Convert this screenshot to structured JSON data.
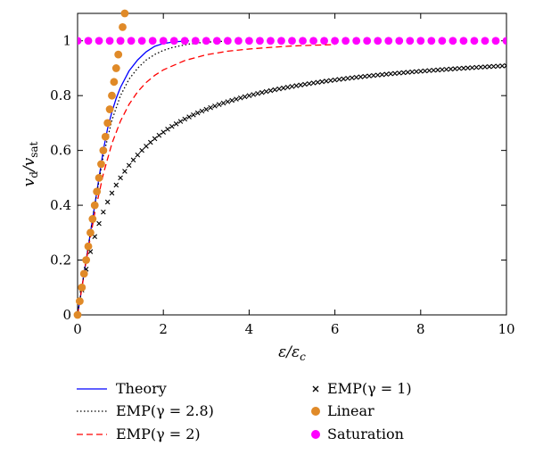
{
  "chart_data": {
    "type": "line",
    "xlabel": "ε/ε_c",
    "ylabel": "v_d/v_sat",
    "xlim": [
      0,
      10
    ],
    "ylim": [
      0,
      1.1
    ],
    "xticks": [
      0,
      2,
      4,
      6,
      8,
      10
    ],
    "yticks": [
      0,
      0.2,
      0.4,
      0.6,
      0.8,
      1
    ],
    "grid": false,
    "legend_position": "below",
    "series": [
      {
        "name": "Theory",
        "style": "solid",
        "color": "#0000ff",
        "x": [
          0,
          0.1,
          0.2,
          0.3,
          0.4,
          0.5,
          0.6,
          0.7,
          0.8,
          0.9,
          1.0,
          1.2,
          1.4,
          1.6,
          1.8,
          2.0,
          2.2,
          2.4,
          2.6
        ],
        "y": [
          0,
          0.1,
          0.2,
          0.3,
          0.4,
          0.5,
          0.6,
          0.68,
          0.74,
          0.79,
          0.83,
          0.89,
          0.93,
          0.96,
          0.98,
          0.99,
          0.995,
          0.998,
          1.0
        ]
      },
      {
        "name": "EMP(γ = 2.8)",
        "style": "dotted",
        "color": "#000000",
        "x": [
          0,
          0.2,
          0.4,
          0.6,
          0.8,
          1.0,
          1.2,
          1.4,
          1.6,
          1.8,
          2.0,
          2.2,
          2.4,
          2.6,
          2.8,
          3.0,
          3.5
        ],
        "y": [
          0,
          0.2,
          0.4,
          0.58,
          0.71,
          0.8,
          0.86,
          0.9,
          0.93,
          0.95,
          0.965,
          0.975,
          0.982,
          0.988,
          0.992,
          0.995,
          0.999
        ]
      },
      {
        "name": "EMP(γ = 2)",
        "style": "dashed",
        "color": "#ff0000",
        "x": [
          0,
          0.2,
          0.4,
          0.6,
          0.8,
          1.0,
          1.2,
          1.4,
          1.6,
          1.8,
          2.0,
          2.5,
          3.0,
          3.5,
          4.0,
          4.5,
          5.0,
          5.5,
          6.0
        ],
        "y": [
          0,
          0.196,
          0.371,
          0.514,
          0.625,
          0.707,
          0.768,
          0.814,
          0.848,
          0.874,
          0.894,
          0.928,
          0.949,
          0.962,
          0.97,
          0.976,
          0.981,
          0.984,
          0.986
        ]
      },
      {
        "name": "EMP(γ = 1)",
        "style": "x-markers",
        "color": "#000000",
        "formula_points_from": 0,
        "x_step": 0.1,
        "x_end": 10
      },
      {
        "name": "Linear",
        "style": "circle-markers",
        "color": "#e08a28",
        "x": [
          0,
          0.05,
          0.1,
          0.15,
          0.2,
          0.25,
          0.3,
          0.35,
          0.4,
          0.45,
          0.5,
          0.55,
          0.6,
          0.65,
          0.7,
          0.75,
          0.8,
          0.85,
          0.9,
          0.95,
          1.0,
          1.05,
          1.1
        ],
        "y": [
          0,
          0.05,
          0.1,
          0.15,
          0.2,
          0.25,
          0.3,
          0.35,
          0.4,
          0.45,
          0.5,
          0.55,
          0.6,
          0.65,
          0.7,
          0.75,
          0.8,
          0.85,
          0.9,
          0.95,
          1.0,
          1.05,
          1.1
        ]
      },
      {
        "name": "Saturation",
        "style": "circle-markers",
        "color": "#ff00ff",
        "x": [
          0,
          0.25,
          0.5,
          0.75,
          1.0,
          1.25,
          1.5,
          1.75,
          2.0,
          2.25,
          2.5,
          2.75,
          3.0,
          3.25,
          3.5,
          3.75,
          4.0,
          4.25,
          4.5,
          4.75,
          5.0,
          5.25,
          5.5,
          5.75,
          6.0,
          6.25,
          6.5,
          6.75,
          7.0,
          7.25,
          7.5,
          7.75,
          8.0,
          8.25,
          8.5,
          8.75,
          9.0,
          9.25,
          9.5,
          9.75,
          10.0
        ],
        "y": [
          1,
          1,
          1,
          1,
          1,
          1,
          1,
          1,
          1,
          1,
          1,
          1,
          1,
          1,
          1,
          1,
          1,
          1,
          1,
          1,
          1,
          1,
          1,
          1,
          1,
          1,
          1,
          1,
          1,
          1,
          1,
          1,
          1,
          1,
          1,
          1,
          1,
          1,
          1,
          1,
          1
        ]
      }
    ]
  }
}
